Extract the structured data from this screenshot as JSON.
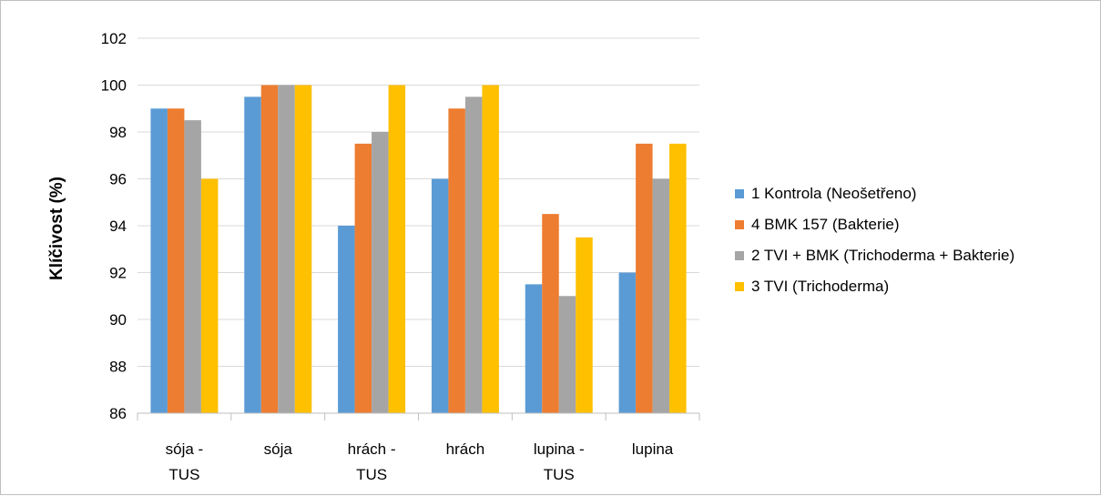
{
  "chart_data": {
    "type": "bar",
    "categories": [
      [
        "sója -",
        "TUS"
      ],
      [
        "sója"
      ],
      [
        "hrách -",
        "TUS"
      ],
      [
        "hrách"
      ],
      [
        "lupina -",
        "TUS"
      ],
      [
        "lupina"
      ]
    ],
    "series": [
      {
        "name": "1 Kontrola (Neošetřeno)",
        "color": "#5b9bd5",
        "values": [
          99,
          99.5,
          94,
          96,
          91.5,
          92
        ]
      },
      {
        "name": "4 BMK 157 (Bakterie)",
        "color": "#ed7d31",
        "values": [
          99,
          100,
          97.5,
          99,
          94.5,
          97.5
        ]
      },
      {
        "name": "2 TVI + BMK (Trichoderma + Bakterie)",
        "color": "#a5a5a5",
        "values": [
          98.5,
          100,
          98,
          99.5,
          91,
          96
        ]
      },
      {
        "name": "3 TVI (Trichoderma)",
        "color": "#ffc000",
        "values": [
          96,
          100,
          100,
          100,
          93.5,
          97.5
        ]
      }
    ],
    "title": "",
    "xlabel": "",
    "ylabel": "Klíčivost (%)",
    "ylim": [
      86,
      102
    ],
    "yticks": [
      "86",
      "88",
      "90",
      "92",
      "94",
      "96",
      "98",
      "100",
      "102"
    ],
    "grid": true,
    "legend_position": "right"
  }
}
